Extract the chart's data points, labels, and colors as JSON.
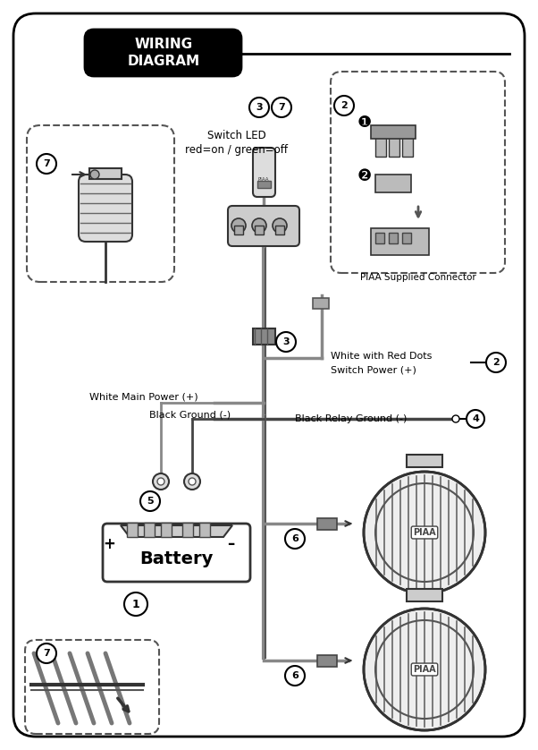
{
  "title": "WIRING\nDIAGRAM",
  "bg_color": "#ffffff",
  "border_color": "#000000",
  "text_color": "#000000",
  "title_bg": "#000000",
  "title_text_color": "#ffffff",
  "labels": {
    "switch_led": "Switch LED\nred=on / green=off",
    "white_main": "White Main Power (+)",
    "black_ground": "Black Ground (-)",
    "white_red_dots": "White with Red Dots",
    "switch_power": "Switch Power (+)",
    "black_relay": "Black Relay Ground (-)",
    "piaa_connector": "PIAA Supplied Connector",
    "battery": "Battery"
  },
  "circle_numbers": [
    1,
    2,
    3,
    4,
    5,
    6,
    7
  ],
  "fig_width": 6.02,
  "fig_height": 8.38
}
